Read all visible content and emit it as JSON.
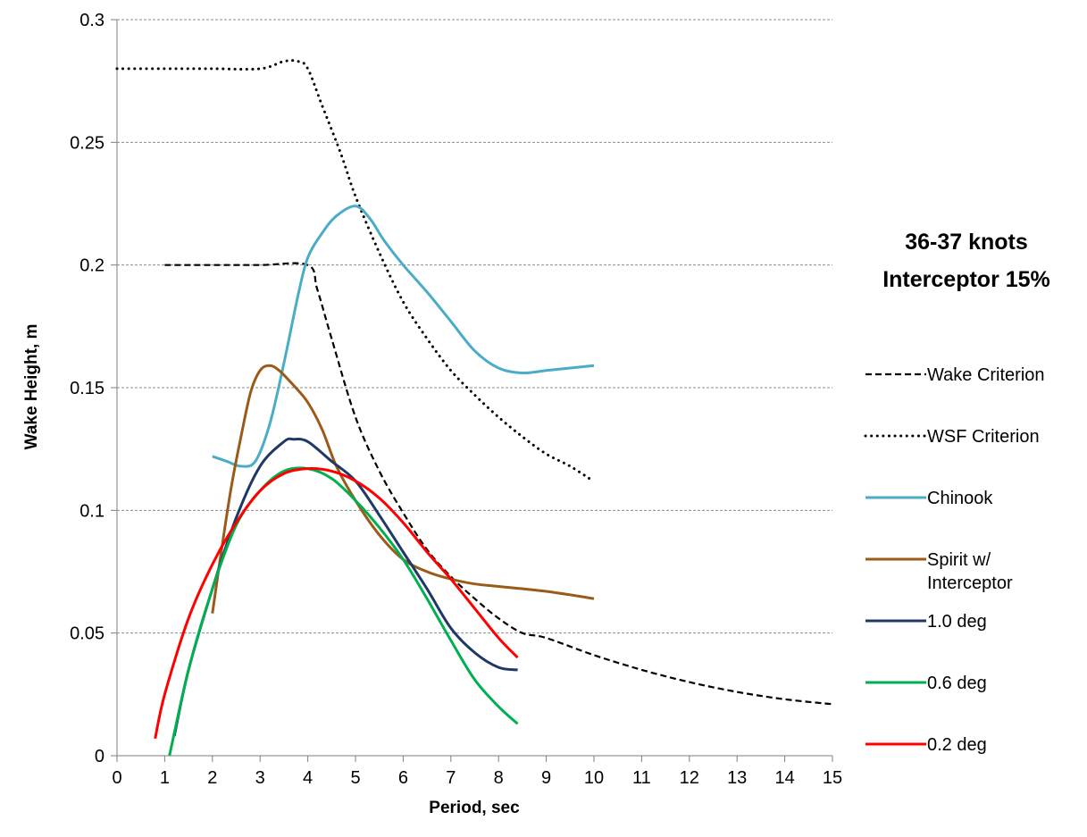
{
  "chart_data": {
    "type": "line",
    "xlabel": "Period, sec",
    "ylabel": "Wake Height, m",
    "xlim": [
      0,
      15
    ],
    "ylim": [
      0,
      0.3
    ],
    "xticks": [
      "0",
      "1",
      "2",
      "3",
      "4",
      "5",
      "6",
      "7",
      "8",
      "9",
      "10",
      "11",
      "12",
      "13",
      "14",
      "15"
    ],
    "yticks": [
      "0",
      "0.05",
      "0.1",
      "0.15",
      "0.2",
      "0.25",
      "0.3"
    ],
    "grid": "horizontal dashed",
    "legend_position": "right",
    "annotation": [
      "36-37 knots",
      "Interceptor 15%"
    ],
    "series": [
      {
        "name": "Wake Criterion",
        "color": "#000000",
        "style": "dashed",
        "x": [
          1,
          2,
          3,
          4,
          4.2,
          4.5,
          5,
          5.5,
          6,
          6.5,
          7,
          7.5,
          8,
          8.5,
          9,
          10,
          11,
          12,
          13,
          14,
          15
        ],
        "y": [
          0.2,
          0.2,
          0.2,
          0.2,
          0.19,
          0.17,
          0.138,
          0.116,
          0.099,
          0.084,
          0.073,
          0.064,
          0.056,
          0.05,
          0.048,
          0.041,
          0.035,
          0.03,
          0.026,
          0.023,
          0.021
        ]
      },
      {
        "name": "WSF Criterion",
        "color": "#000000",
        "style": "dotted",
        "x": [
          0,
          1,
          2,
          3,
          3.5,
          3.8,
          4,
          4.3,
          4.7,
          5,
          5.5,
          6,
          6.5,
          7,
          7.5,
          8,
          8.5,
          9,
          9.5,
          9.9
        ],
        "y": [
          0.28,
          0.28,
          0.28,
          0.28,
          0.283,
          0.283,
          0.28,
          0.265,
          0.245,
          0.228,
          0.205,
          0.185,
          0.17,
          0.157,
          0.147,
          0.138,
          0.13,
          0.123,
          0.118,
          0.113
        ]
      },
      {
        "name": "Chinook",
        "color": "#4BACC6",
        "style": "solid",
        "x": [
          2,
          2.3,
          2.6,
          2.9,
          3.2,
          3.5,
          3.8,
          4,
          4.3,
          4.6,
          5,
          5.3,
          5.6,
          6,
          6.5,
          7,
          7.5,
          8,
          8.5,
          9,
          9.5,
          10
        ],
        "y": [
          0.122,
          0.12,
          0.118,
          0.12,
          0.135,
          0.16,
          0.188,
          0.203,
          0.213,
          0.22,
          0.224,
          0.219,
          0.21,
          0.2,
          0.189,
          0.177,
          0.165,
          0.158,
          0.156,
          0.157,
          0.158,
          0.159
        ]
      },
      {
        "name": "Spirit w/ Interceptor",
        "color": "#9C5A1A",
        "style": "solid",
        "x": [
          2,
          2.2,
          2.4,
          2.6,
          2.8,
          3,
          3.2,
          3.4,
          3.7,
          4,
          4.3,
          4.6,
          5,
          5.5,
          6,
          6.5,
          7,
          7.5,
          8,
          9,
          10
        ],
        "y": [
          0.058,
          0.085,
          0.11,
          0.13,
          0.148,
          0.157,
          0.159,
          0.157,
          0.151,
          0.144,
          0.133,
          0.118,
          0.104,
          0.09,
          0.08,
          0.075,
          0.072,
          0.07,
          0.069,
          0.067,
          0.064
        ]
      },
      {
        "name": "1.0 deg",
        "color": "#1F3864",
        "style": "solid",
        "x": [
          1.2,
          1.5,
          2,
          2.5,
          3,
          3.5,
          3.7,
          4,
          4.5,
          5,
          5.5,
          6,
          6.5,
          7,
          7.5,
          8,
          8.4
        ],
        "y": [
          0.008,
          0.035,
          0.068,
          0.097,
          0.118,
          0.128,
          0.129,
          0.128,
          0.12,
          0.112,
          0.098,
          0.083,
          0.068,
          0.052,
          0.042,
          0.036,
          0.035
        ]
      },
      {
        "name": "0.6 deg",
        "color": "#00B050",
        "style": "solid",
        "x": [
          1.1,
          1.5,
          2,
          2.5,
          3,
          3.5,
          4,
          4.5,
          5,
          5.5,
          6,
          6.5,
          7,
          7.5,
          8,
          8.4
        ],
        "y": [
          0.0,
          0.035,
          0.068,
          0.094,
          0.108,
          0.116,
          0.117,
          0.113,
          0.104,
          0.093,
          0.08,
          0.064,
          0.047,
          0.031,
          0.02,
          0.013
        ]
      },
      {
        "name": "0.2 deg",
        "color": "#FF0000",
        "style": "solid",
        "x": [
          0.8,
          1,
          1.5,
          2,
          2.5,
          3,
          3.5,
          4,
          4.5,
          5,
          5.5,
          6,
          6.5,
          7,
          7.5,
          8,
          8.4
        ],
        "y": [
          0.007,
          0.025,
          0.056,
          0.078,
          0.095,
          0.108,
          0.115,
          0.117,
          0.116,
          0.112,
          0.105,
          0.095,
          0.083,
          0.072,
          0.06,
          0.048,
          0.04
        ]
      }
    ]
  }
}
